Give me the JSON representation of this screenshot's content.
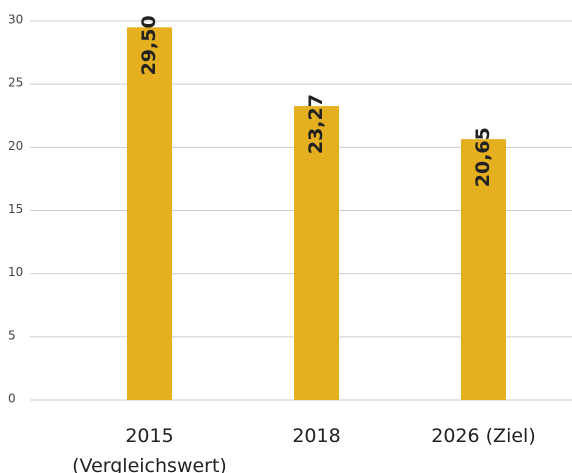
{
  "chart_data": {
    "type": "bar",
    "categories": [
      "2015 (Vergleichswert)",
      "2018",
      "2026 (Ziel)"
    ],
    "values": [
      29.5,
      23.27,
      20.65
    ],
    "value_labels": [
      "29,50",
      "23,27",
      "20,65"
    ],
    "color": "#e5b020",
    "ylim": [
      0,
      30
    ],
    "yticks": [
      0,
      5,
      10,
      15,
      20,
      25,
      30
    ],
    "grid": true
  }
}
